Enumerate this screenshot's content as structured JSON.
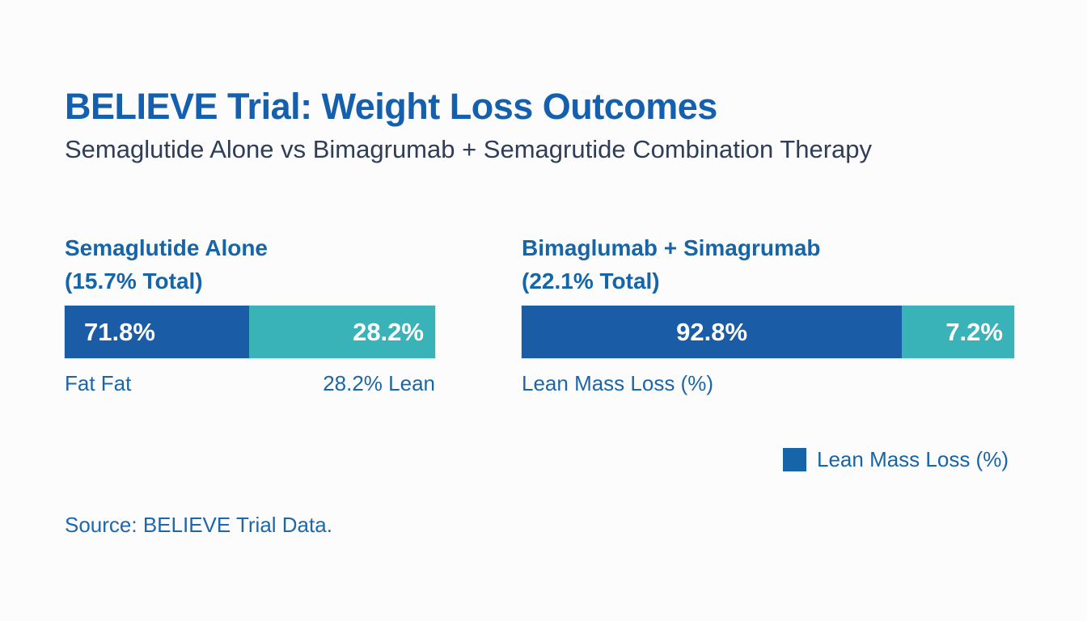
{
  "page": {
    "title": "BELIEVE Trial: Weight Loss Outcomes",
    "subtitle": "Semaglutide Alone vs Bimagrumab + Semagrutide Combination Therapy",
    "source": "Source: BELIEVE Trial Data."
  },
  "colors": {
    "title_blue": "#1460ae",
    "subtitle_navy": "#2f3e56",
    "heading_blue": "#1565a8",
    "bar_blue": "#1b5ca6",
    "bar_teal": "#3ab3b8",
    "label_text_blue": "#1c66a8",
    "background": "#fcfcfd"
  },
  "legend": {
    "label": "Lean Mass Loss (%)",
    "swatch_color": "#1565a8"
  },
  "chart_data": {
    "type": "bar",
    "subtype": "stacked-horizontal",
    "title": "BELIEVE Trial: Weight Loss Outcomes",
    "subtitle": "Semaglutide Alone vs Bimagrumab + Semagrutide Combination Therapy",
    "legend": [
      "Lean Mass Loss (%)"
    ],
    "legend_position": "right-below",
    "grid": false,
    "units": "percent of total weight loss",
    "groups": [
      {
        "name": "Semaglutide Alone",
        "total_label": "(15.7% Total)",
        "total_weight_loss_pct": 15.7,
        "segments": [
          {
            "name": "Fat",
            "value_pct": 71.8,
            "label": "71.8%",
            "color": "#1b5ca6",
            "display_width_pct": 49.8
          },
          {
            "name": "Lean",
            "value_pct": 28.2,
            "label": "28.2%",
            "color": "#3ab3b8",
            "display_width_pct": 50.2
          }
        ],
        "axis_labels": {
          "left": "Fat Fat",
          "right": "28.2% Lean"
        }
      },
      {
        "name": "Bimaglumab + Simagrumab",
        "total_label": "(22.1% Total)",
        "total_weight_loss_pct": 22.1,
        "segments": [
          {
            "name": "Fat",
            "value_pct": 92.8,
            "label": "92.8%",
            "color": "#1b5ca6",
            "display_width_pct": 77.2
          },
          {
            "name": "Lean",
            "value_pct": 7.2,
            "label": "7.2%",
            "color": "#3ab3b8",
            "display_width_pct": 22.8
          }
        ],
        "axis_labels": {
          "left": "Lean Mass Loss (%)",
          "right": ""
        }
      }
    ]
  }
}
